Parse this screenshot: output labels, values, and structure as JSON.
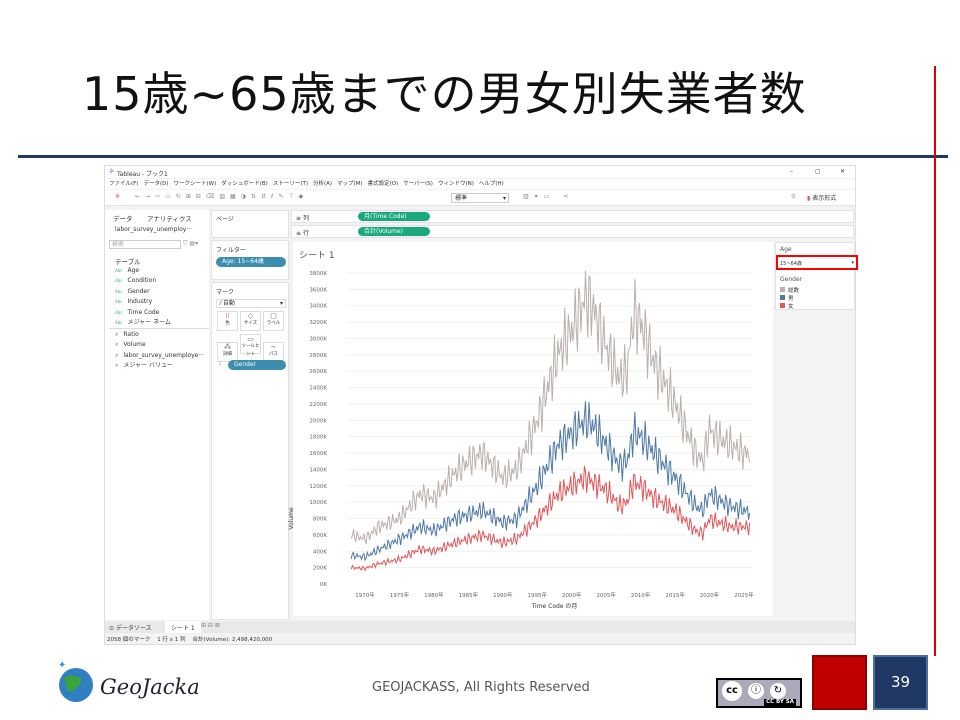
{
  "slide": {
    "title": "15歳~65歳までの男女別失業者数",
    "footer": "GEOJACKASS, All Rights Reserved",
    "page_number": "39",
    "logo_text": "GeoJackass",
    "license": "CC BY SA",
    "colors": {
      "accent_blue": "#1f3864",
      "accent_red": "#c00000"
    }
  },
  "window": {
    "title": "Tableau - ブック1",
    "controls": [
      "–",
      "▢",
      "✕"
    ],
    "menu": [
      "ファイル(F)",
      "データ(D)",
      "ワークシート(W)",
      "ダッシュボード(B)",
      "ストーリー(T)",
      "分析(A)",
      "マップ(M)",
      "書式設定(O)",
      "サーバー(S)",
      "ウィンドウ(N)",
      "ヘルプ(H)"
    ],
    "toolbar": {
      "fit_select": "標準",
      "show_me": "表示形式"
    }
  },
  "data_pane": {
    "tabs": [
      "データ",
      "アナリティクス"
    ],
    "datasource": "labor_survey_unemploy···",
    "search_placeholder": "検索",
    "section": "テーブル",
    "dimensions": [
      "Age",
      "Condition",
      "Gender",
      "Industry",
      "Time Code",
      "メジャー ネーム"
    ],
    "measures": [
      "Ratio",
      "Volume",
      "labor_survey_unemploye···",
      "メジャー バリュー"
    ]
  },
  "shelves": {
    "pages": "ページ",
    "filters_label": "フィルター",
    "filter_pill": "Age: 15~64歳",
    "marks_label": "マーク",
    "mark_type": "自動",
    "mark_buttons": [
      "色",
      "サイズ",
      "ラベル",
      "詳細",
      "ツールヒント",
      "パス"
    ],
    "gender_pill": "Gender",
    "columns_label": "列",
    "columns_pill": "月(Time Code)",
    "rows_label": "行",
    "rows_pill": "合計(Volume)"
  },
  "sheet": {
    "title": "シート 1"
  },
  "legend": {
    "age_title": "Age",
    "age_value": "15~64歳",
    "gender_title": "Gender",
    "items": [
      {
        "label": "総数",
        "color": "#bab0ac"
      },
      {
        "label": "男",
        "color": "#4e79a7"
      },
      {
        "label": "女",
        "color": "#e15759"
      }
    ]
  },
  "status": {
    "tabs": [
      "データソース",
      "シート 1"
    ],
    "marks": "2058 個のマーク",
    "rows_cols": "1 行 x 1 列",
    "sum": "合計(Volume): 2,498,420,000"
  },
  "chart_data": {
    "type": "line",
    "xlabel": "Time Code の月",
    "ylabel": "Volume",
    "xlim": [
      1968,
      2026.5
    ],
    "ylim": [
      0,
      3800
    ],
    "x_ticks": [
      "1970年",
      "1975年",
      "1980年",
      "1985年",
      "1990年",
      "1995年",
      "2000年",
      "2005年",
      "2010年",
      "2015年",
      "2020年",
      "2025年"
    ],
    "y_ticks": [
      "0K",
      "200K",
      "400K",
      "600K",
      "800K",
      "1000K",
      "1200K",
      "1400K",
      "1600K",
      "1800K",
      "2000K",
      "2200K",
      "2400K",
      "2600K",
      "2800K",
      "3000K",
      "3200K",
      "3400K",
      "3600K",
      "3800K"
    ],
    "x": [
      1968,
      1970,
      1972,
      1975,
      1978,
      1980,
      1983,
      1985,
      1987,
      1990,
      1992,
      1995,
      1998,
      2000,
      2002,
      2003,
      2005,
      2007,
      2008,
      2009,
      2010,
      2012,
      2015,
      2018,
      2019,
      2020,
      2021,
      2023,
      2025,
      2026
    ],
    "series": [
      {
        "name": "総数",
        "color": "#bab0ac",
        "values": [
          600,
          550,
          700,
          800,
          1100,
          1050,
          1350,
          1500,
          1600,
          1300,
          1400,
          2000,
          2800,
          3100,
          3500,
          3400,
          2900,
          2500,
          2600,
          3300,
          3200,
          2700,
          2200,
          1600,
          1500,
          1900,
          1800,
          1700,
          1600,
          1600
        ]
      },
      {
        "name": "男",
        "color": "#4e79a7",
        "values": [
          350,
          330,
          420,
          550,
          700,
          650,
          800,
          850,
          900,
          750,
          800,
          1200,
          1700,
          1850,
          2000,
          1950,
          1700,
          1450,
          1500,
          1850,
          1800,
          1600,
          1300,
          950,
          900,
          1100,
          1050,
          950,
          900,
          880
        ]
      },
      {
        "name": "女",
        "color": "#e15759",
        "values": [
          200,
          190,
          250,
          300,
          430,
          400,
          500,
          550,
          600,
          500,
          550,
          800,
          1100,
          1200,
          1300,
          1250,
          1150,
          950,
          1000,
          1250,
          1200,
          1050,
          900,
          650,
          620,
          800,
          760,
          700,
          700,
          700
        ]
      }
    ]
  }
}
